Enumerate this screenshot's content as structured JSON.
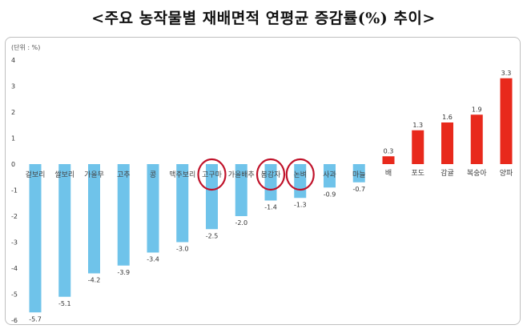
{
  "title": "<주요 농작물별 재배면적 연평균 증감률(%) 추이>",
  "chart_data": {
    "type": "bar",
    "title": "<주요 농작물별 재배면적 연평균 증감률(%) 추이>",
    "unit_label": "(단위 : %)",
    "ylim": [
      -6,
      4
    ],
    "yticks": [
      4,
      3,
      2,
      1,
      0,
      -1,
      -2,
      -3,
      -4,
      -5,
      -6
    ],
    "grid": false,
    "categories": [
      "겉보리",
      "쌀보리",
      "가을무",
      "고추",
      "콩",
      "맥주보리",
      "고구마",
      "가을배추",
      "봄감자",
      "논벼",
      "사과",
      "마늘",
      "배",
      "포도",
      "감귤",
      "복숭아",
      "양파"
    ],
    "values": [
      -5.7,
      -5.1,
      -4.2,
      -3.9,
      -3.4,
      -3.0,
      -2.5,
      -2.0,
      -1.4,
      -1.3,
      -0.9,
      -0.7,
      0.3,
      1.3,
      1.6,
      1.9,
      3.3
    ],
    "value_labels": [
      "-5.7",
      "-5.1",
      "-4.2",
      "-3.9",
      "-3.4",
      "-3.0",
      "-2.5",
      "-2.0",
      "-1.4",
      "-1.3",
      "-0.9",
      "-0.7",
      "0.3",
      "1.3",
      "1.6",
      "1.9",
      "3.3"
    ],
    "colors": {
      "negative": "#6fc3ea",
      "positive": "#e8291c",
      "highlight_circle": "#c0122a"
    },
    "highlighted_categories": [
      "고구마",
      "봄감자",
      "논벼"
    ]
  }
}
